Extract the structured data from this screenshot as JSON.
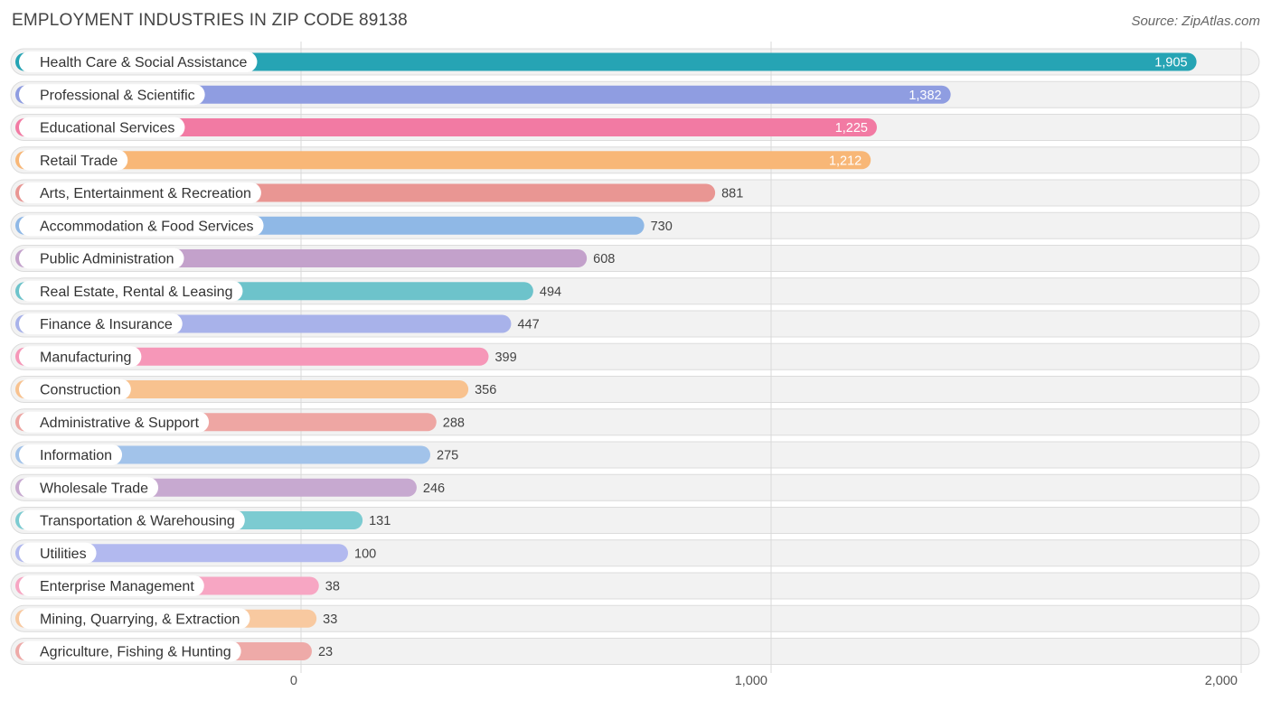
{
  "chart_data": {
    "type": "bar",
    "orientation": "horizontal",
    "title": "EMPLOYMENT INDUSTRIES IN ZIP CODE 89138",
    "source": "Source: ZipAtlas.com",
    "categories": [
      "Health Care & Social Assistance",
      "Professional & Scientific",
      "Educational Services",
      "Retail Trade",
      "Arts, Entertainment & Recreation",
      "Accommodation & Food Services",
      "Public Administration",
      "Real Estate, Rental & Leasing",
      "Finance & Insurance",
      "Manufacturing",
      "Construction",
      "Administrative & Support",
      "Information",
      "Wholesale Trade",
      "Transportation & Warehousing",
      "Utilities",
      "Enterprise Management",
      "Mining, Quarrying, & Extraction",
      "Agriculture, Fishing & Hunting"
    ],
    "values": [
      1905,
      1382,
      1225,
      1212,
      881,
      730,
      608,
      494,
      447,
      399,
      356,
      288,
      275,
      246,
      131,
      100,
      38,
      33,
      23
    ],
    "value_labels": [
      "1,905",
      "1,382",
      "1,225",
      "1,212",
      "881",
      "730",
      "608",
      "494",
      "447",
      "399",
      "356",
      "288",
      "275",
      "246",
      "131",
      "100",
      "38",
      "33",
      "23"
    ],
    "colors": [
      "#26a4b4",
      "#8f9de1",
      "#f27aa3",
      "#f8b777",
      "#e99693",
      "#8fb8e6",
      "#c3a1cb",
      "#6dc3cb",
      "#a8b2ea",
      "#f697b8",
      "#f8c28f",
      "#eea6a3",
      "#a2c3ea",
      "#c7a9d0",
      "#7ccbd1",
      "#b2b9ef",
      "#f7a6c3",
      "#f8c9a0",
      "#eeaaa8"
    ],
    "xlim": [
      0,
      2000
    ],
    "xticks": [
      0,
      1000,
      2000
    ],
    "xtick_labels": [
      "0",
      "1,000",
      "2,000"
    ],
    "grid": true
  }
}
